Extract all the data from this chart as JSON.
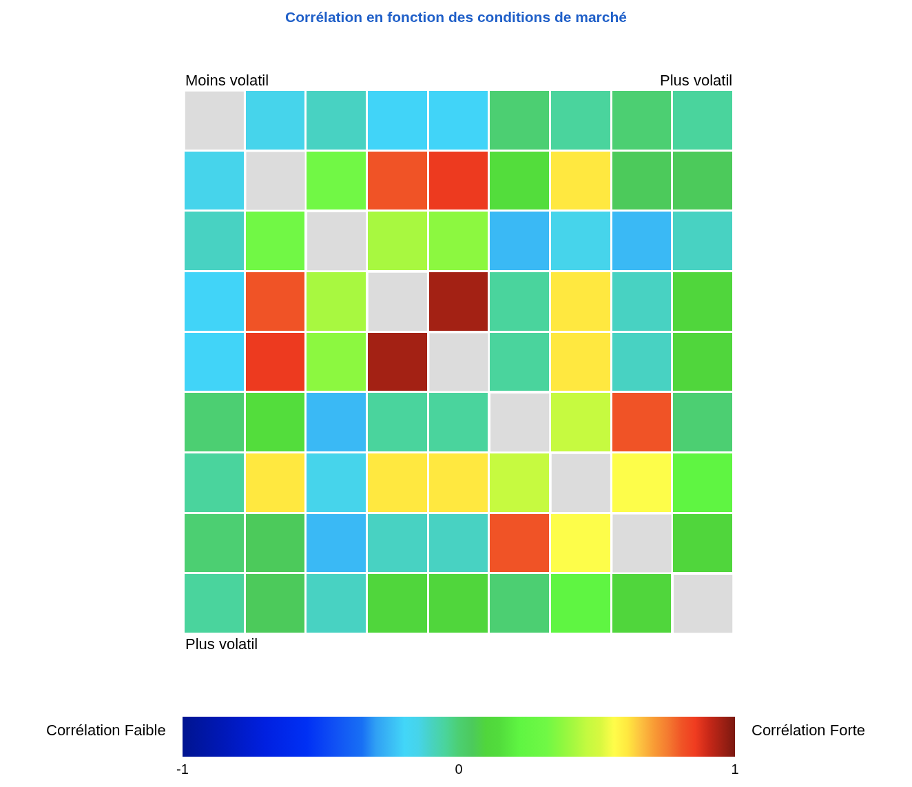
{
  "chart_data": {
    "type": "heatmap",
    "title": "Corrélation en fonction des conditions de marché",
    "categories": [
      null,
      null,
      null,
      null,
      null,
      null,
      null,
      null,
      null
    ],
    "y_categories": [
      null,
      null,
      null,
      null,
      null,
      null,
      null,
      null,
      null
    ],
    "cells": [
      [
        null,
        -0.15,
        -0.1,
        -0.2,
        -0.2,
        0.0,
        -0.05,
        0.0,
        -0.05
      ],
      [
        -0.15,
        null,
        0.32,
        0.81,
        0.86,
        0.15,
        0.61,
        0.05,
        0.05
      ],
      [
        -0.1,
        0.32,
        null,
        0.42,
        0.37,
        -0.25,
        -0.15,
        -0.25,
        -0.1
      ],
      [
        -0.2,
        0.81,
        0.42,
        null,
        0.95,
        -0.05,
        0.61,
        -0.1,
        0.1
      ],
      [
        -0.2,
        0.86,
        0.37,
        0.95,
        null,
        -0.05,
        0.61,
        -0.1,
        0.1
      ],
      [
        0.0,
        0.15,
        -0.25,
        -0.05,
        -0.05,
        null,
        0.47,
        0.81,
        0.0
      ],
      [
        -0.05,
        0.61,
        -0.15,
        0.61,
        0.61,
        0.47,
        null,
        0.56,
        0.22
      ],
      [
        0.0,
        0.05,
        -0.25,
        -0.1,
        -0.1,
        0.81,
        0.56,
        null,
        0.1
      ],
      [
        -0.05,
        0.05,
        -0.1,
        0.1,
        0.1,
        0.0,
        0.22,
        0.1,
        null
      ]
    ],
    "clim": [
      -1,
      1
    ],
    "cticks": [
      -1,
      0,
      1
    ],
    "annotations": [
      "Moins volatil",
      "Plus volatil",
      "Plus volatil",
      "Corrélation Faible",
      "Corrélation Forte"
    ]
  }
}
